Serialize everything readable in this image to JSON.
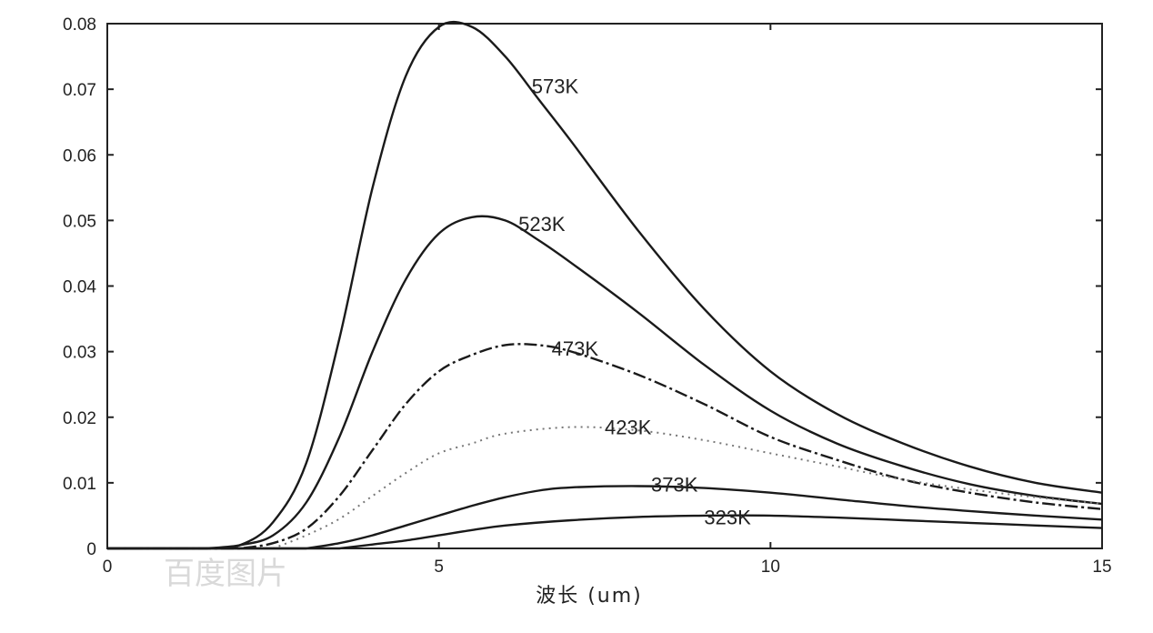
{
  "chart_data": {
    "type": "line",
    "title": "",
    "xlabel": "波长 (um)",
    "ylabel": "",
    "xlim": [
      0,
      15
    ],
    "ylim": [
      0,
      0.08
    ],
    "x_ticks": [
      0,
      5,
      10,
      15
    ],
    "x_tick_labels": [
      "0",
      "5",
      "10",
      "15"
    ],
    "y_ticks": [
      0,
      0.01,
      0.02,
      0.03,
      0.04,
      0.05,
      0.06,
      0.07,
      0.08
    ],
    "y_tick_labels": [
      "0",
      "0.01",
      "0.02",
      "0.03",
      "0.04",
      "0.05",
      "0.06",
      "0.07",
      "0.08"
    ],
    "grid": false,
    "legend": "none",
    "series": [
      {
        "name": "573K",
        "style": "solid",
        "x": [
          1.5,
          2,
          2.5,
          3,
          3.5,
          4,
          4.5,
          5,
          5.5,
          6,
          6.5,
          7,
          8,
          9,
          10,
          11,
          12,
          13,
          14,
          15
        ],
        "y": [
          0,
          0.0005,
          0.004,
          0.013,
          0.032,
          0.055,
          0.072,
          0.0795,
          0.0795,
          0.075,
          0.0685,
          0.062,
          0.0485,
          0.0365,
          0.027,
          0.0205,
          0.016,
          0.0125,
          0.01,
          0.0085
        ]
      },
      {
        "name": "523K",
        "style": "solid",
        "x": [
          1.5,
          2,
          2.5,
          3,
          3.5,
          4,
          4.5,
          5,
          5.5,
          6,
          6.5,
          7,
          8,
          9,
          10,
          11,
          12,
          13,
          14,
          15
        ],
        "y": [
          0,
          0.0005,
          0.002,
          0.007,
          0.017,
          0.03,
          0.041,
          0.048,
          0.0505,
          0.05,
          0.047,
          0.0435,
          0.036,
          0.028,
          0.021,
          0.016,
          0.0125,
          0.0098,
          0.008,
          0.0068
        ]
      },
      {
        "name": "473K",
        "style": "dashed",
        "x": [
          2,
          2.5,
          3,
          3.5,
          4,
          4.5,
          5,
          5.5,
          6,
          6.5,
          7,
          8,
          9,
          10,
          11,
          12,
          13,
          14,
          15
        ],
        "y": [
          0,
          0.0008,
          0.003,
          0.008,
          0.015,
          0.022,
          0.027,
          0.0295,
          0.031,
          0.031,
          0.03,
          0.0265,
          0.022,
          0.017,
          0.0135,
          0.0105,
          0.0085,
          0.007,
          0.006
        ]
      },
      {
        "name": "423K",
        "style": "dotted",
        "x": [
          2.5,
          3,
          3.5,
          4,
          4.5,
          5,
          5.5,
          6,
          7,
          8,
          9,
          10,
          11,
          12,
          13,
          14,
          15
        ],
        "y": [
          0,
          0.002,
          0.0045,
          0.008,
          0.0115,
          0.0145,
          0.016,
          0.0175,
          0.0185,
          0.018,
          0.0165,
          0.0145,
          0.0125,
          0.0105,
          0.009,
          0.0078,
          0.0068
        ]
      },
      {
        "name": "373K",
        "style": "solid",
        "x": [
          3,
          3.5,
          4,
          4.5,
          5,
          5.5,
          6,
          6.5,
          7,
          8,
          9,
          10,
          11,
          12,
          13,
          14,
          15
        ],
        "y": [
          0,
          0.0008,
          0.002,
          0.0035,
          0.005,
          0.0065,
          0.0078,
          0.0088,
          0.0093,
          0.0095,
          0.0092,
          0.0085,
          0.0075,
          0.0065,
          0.0057,
          0.005,
          0.0044
        ]
      },
      {
        "name": "323K",
        "style": "solid",
        "x": [
          3.5,
          4,
          4.5,
          5,
          5.5,
          6,
          7,
          8,
          9,
          10,
          11,
          12,
          13,
          14,
          15
        ],
        "y": [
          0,
          0.0006,
          0.0012,
          0.002,
          0.0028,
          0.0035,
          0.0043,
          0.0048,
          0.005,
          0.005,
          0.0047,
          0.0043,
          0.0039,
          0.0035,
          0.0031
        ]
      }
    ],
    "annotations": [
      {
        "text": "573K",
        "x": 6.4,
        "y": 0.0705
      },
      {
        "text": "523K",
        "x": 6.2,
        "y": 0.0495
      },
      {
        "text": "473K",
        "x": 6.7,
        "y": 0.0305
      },
      {
        "text": "423K",
        "x": 7.5,
        "y": 0.0185
      },
      {
        "text": "373K",
        "x": 8.2,
        "y": 0.0098
      },
      {
        "text": "323K",
        "x": 9.0,
        "y": 0.0048
      }
    ]
  },
  "watermark": {
    "text": "百度图片",
    "color": "#d9d9d9"
  }
}
